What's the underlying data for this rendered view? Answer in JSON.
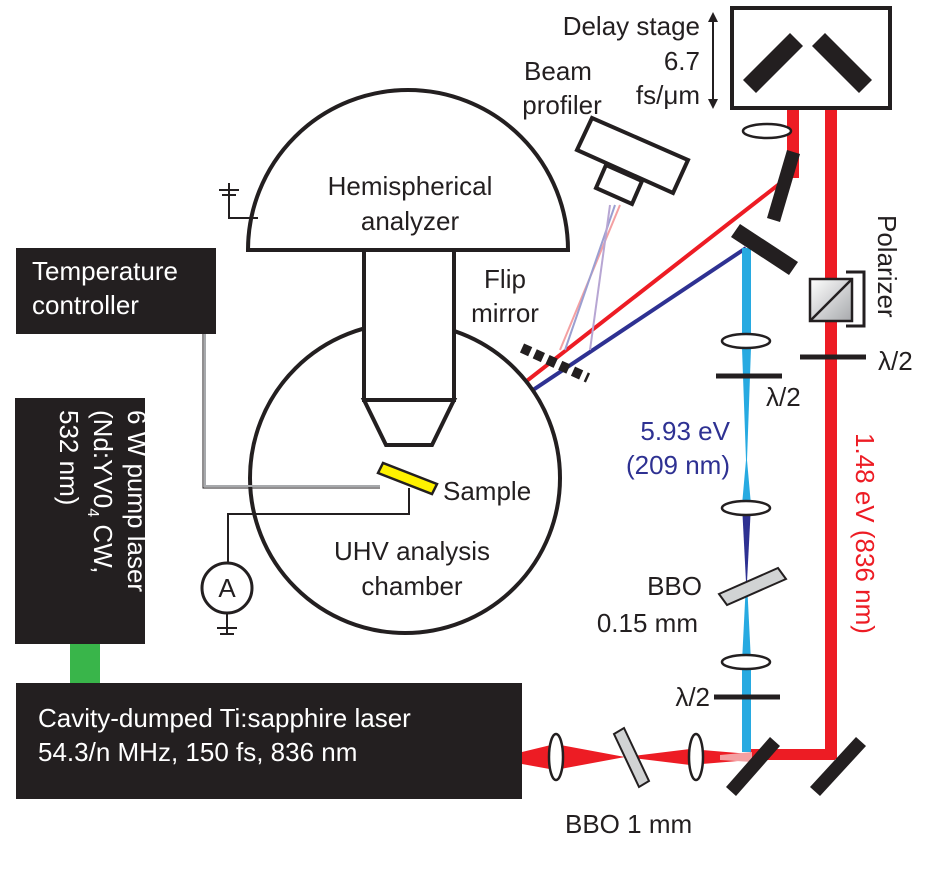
{
  "delay_stage": {
    "title": "Delay stage",
    "value": "6.7",
    "unit": "fs/μm"
  },
  "beam_profiler": {
    "line1": "Beam",
    "line2": "profiler"
  },
  "analyzer": {
    "line1": "Hemispherical",
    "line2": "analyzer"
  },
  "temperature_controller": {
    "line1": "Temperature",
    "line2": "controller"
  },
  "flip_mirror": {
    "line1": "Flip",
    "line2": "mirror"
  },
  "polarizer": {
    "label": "Polarizer"
  },
  "waveplates": {
    "red_arm": "λ/2",
    "blue_arm": "λ/2",
    "input": "λ/2"
  },
  "uv_beam": {
    "energy": "5.93 eV",
    "wavelength": "(209 nm)",
    "color": "#2e3192"
  },
  "ir_beam": {
    "label": "1.48 eV (836 nm)",
    "color": "#ed1c24"
  },
  "sample": {
    "label": "Sample",
    "color": "#fff200"
  },
  "chamber": {
    "line1": "UHV analysis",
    "line2": "chamber"
  },
  "ammeter": {
    "symbol": "A"
  },
  "pump_laser": {
    "line1": "6 W pump laser",
    "line2_prefix": "(Nd:YV0",
    "line2_sub": "4",
    "line2_suffix": " CW,",
    "line3": "532 nm)",
    "beam_color": "#39b54a"
  },
  "ti_laser": {
    "line1": "Cavity-dumped Ti:sapphire laser",
    "line2": "54.3/n MHz, 150 fs, 836 nm"
  },
  "bbo_thin": {
    "line1": "BBO",
    "line2": "0.15 mm"
  },
  "bbo_thick": {
    "label": "BBO 1 mm"
  },
  "colors": {
    "uv_light": "#27aae1",
    "dark": "#231f20"
  }
}
